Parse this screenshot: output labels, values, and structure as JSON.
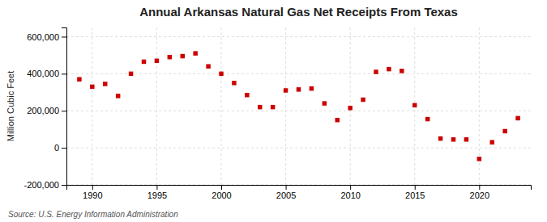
{
  "chart_data": {
    "type": "scatter",
    "title": "Annual Arkansas Natural Gas Net Receipts From Texas",
    "ylabel": "Million Cubic Feet",
    "source": "Source: U.S. Energy Information Administration",
    "x": [
      1989,
      1990,
      1991,
      1992,
      1993,
      1994,
      1995,
      1996,
      1997,
      1998,
      1999,
      2000,
      2001,
      2002,
      2003,
      2004,
      2005,
      2006,
      2007,
      2008,
      2009,
      2010,
      2011,
      2012,
      2013,
      2014,
      2015,
      2016,
      2017,
      2018,
      2019,
      2020,
      2021,
      2022,
      2023
    ],
    "values": [
      370000,
      330000,
      345000,
      280000,
      400000,
      465000,
      470000,
      490000,
      495000,
      510000,
      440000,
      400000,
      350000,
      285000,
      220000,
      220000,
      310000,
      315000,
      320000,
      240000,
      150000,
      215000,
      260000,
      410000,
      425000,
      415000,
      230000,
      155000,
      50000,
      45000,
      45000,
      -60000,
      30000,
      90000,
      160000
    ],
    "color": "#cc0000",
    "marker": "square",
    "xlim": [
      1988,
      2024
    ],
    "ylim": [
      -200000,
      650000
    ],
    "xticks": [
      1990,
      1995,
      2000,
      2005,
      2010,
      2015,
      2020
    ],
    "yticks": [
      {
        "value": -200000,
        "label": "-200,000"
      },
      0,
      {
        "value": 200000,
        "label": "200,000"
      },
      {
        "value": 400000,
        "label": "400,000"
      },
      {
        "value": 600000,
        "label": "600,000"
      }
    ],
    "grid": true
  }
}
